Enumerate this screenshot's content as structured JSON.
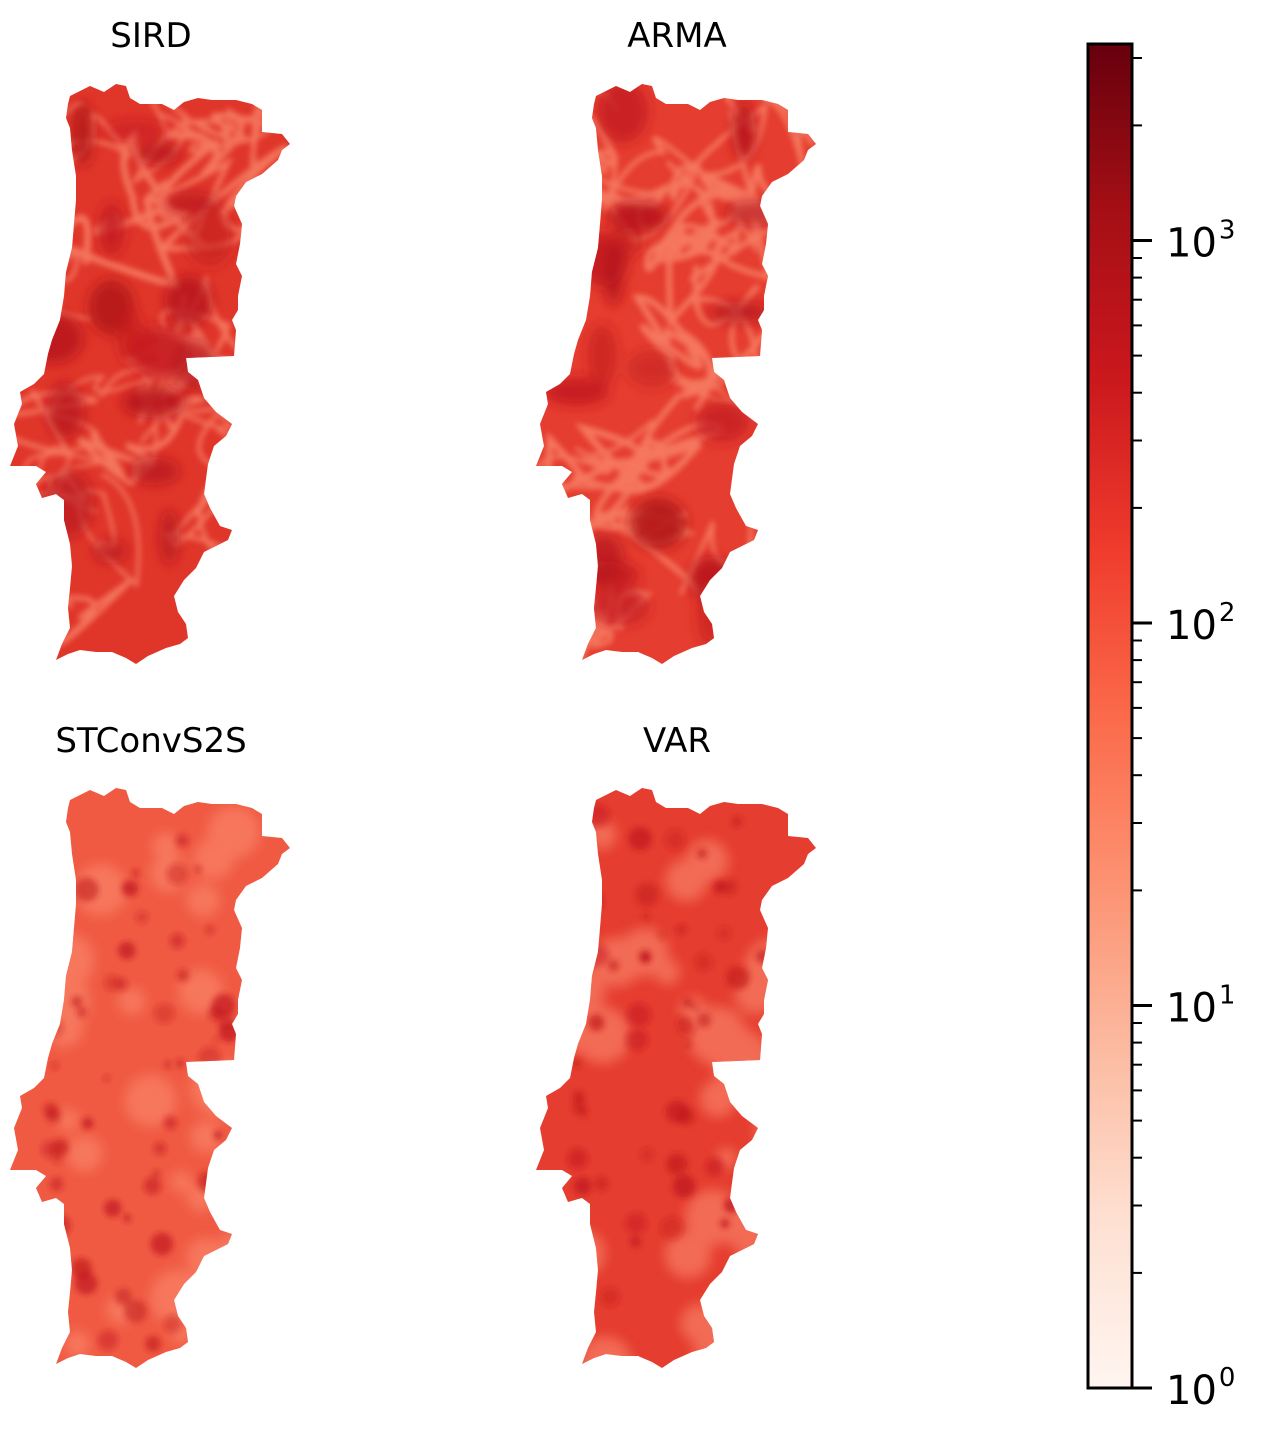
{
  "panels": [
    {
      "title": "SIRD",
      "intensity": 0.72,
      "texture": "smooth-veins"
    },
    {
      "title": "ARMA",
      "intensity": 0.68,
      "texture": "smooth-veins"
    },
    {
      "title": "STConvS2S",
      "intensity": 0.55,
      "texture": "speckled"
    },
    {
      "title": "VAR",
      "intensity": 0.66,
      "texture": "speckled"
    }
  ],
  "colorbar": {
    "colormap": "Reds",
    "scale": "log",
    "range": [
      1,
      3000
    ],
    "ticks": [
      {
        "base": "10",
        "exp": "0",
        "value": 1
      },
      {
        "base": "10",
        "exp": "1",
        "value": 10
      },
      {
        "base": "10",
        "exp": "2",
        "value": 100
      },
      {
        "base": "10",
        "exp": "3",
        "value": 1000
      }
    ],
    "colors": [
      "#fff5f0",
      "#fee0d2",
      "#fcbba1",
      "#fc9272",
      "#fb6a4a",
      "#ef3b2c",
      "#cb181d",
      "#a50f15",
      "#67000d"
    ]
  }
}
